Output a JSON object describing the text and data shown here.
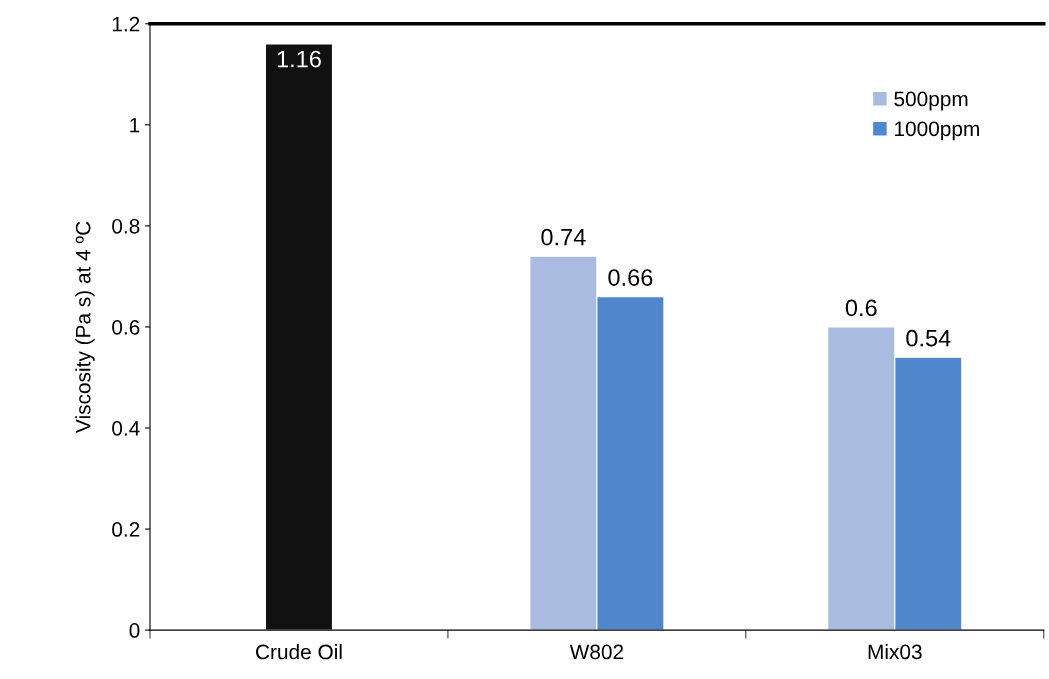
{
  "chart_data": {
    "type": "bar",
    "ylabel": "Viscosity (Pa s) at 4 ºC",
    "categories": [
      "Crude Oil",
      "W802",
      "Mix03"
    ],
    "series": [
      {
        "color": "#111111",
        "values": [
          1.16,
          null,
          null
        ]
      },
      {
        "name": "500ppm",
        "color": "#a9bbde",
        "values": [
          null,
          0.74,
          0.6
        ]
      },
      {
        "name": "1000ppm",
        "color": "#4f86cc",
        "values": [
          null,
          0.66,
          0.54
        ]
      }
    ],
    "ylim": [
      0,
      1.2
    ],
    "yticks": [
      0,
      0.2,
      0.4,
      0.6,
      0.8,
      1,
      1.2
    ],
    "data_labels": true,
    "grid": false,
    "legend": "top right"
  }
}
